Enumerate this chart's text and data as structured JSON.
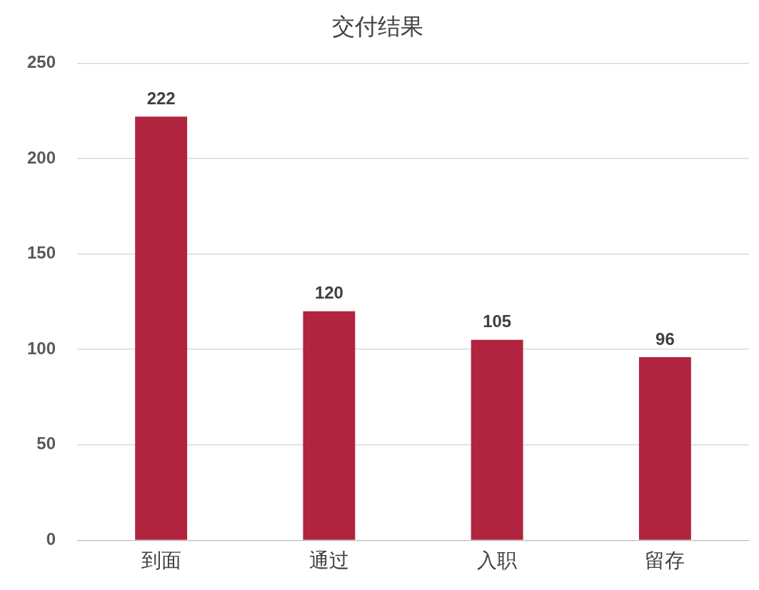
{
  "chart_data": {
    "type": "bar",
    "title": "交付结果",
    "categories": [
      "到面",
      "通过",
      "入职",
      "留存"
    ],
    "values": [
      222,
      120,
      105,
      96
    ],
    "color": "#b0243f",
    "ylim": [
      0,
      250
    ],
    "yticks": [
      0,
      50,
      100,
      150,
      200,
      250
    ],
    "grid": "y",
    "legend": false,
    "data_labels": true
  }
}
